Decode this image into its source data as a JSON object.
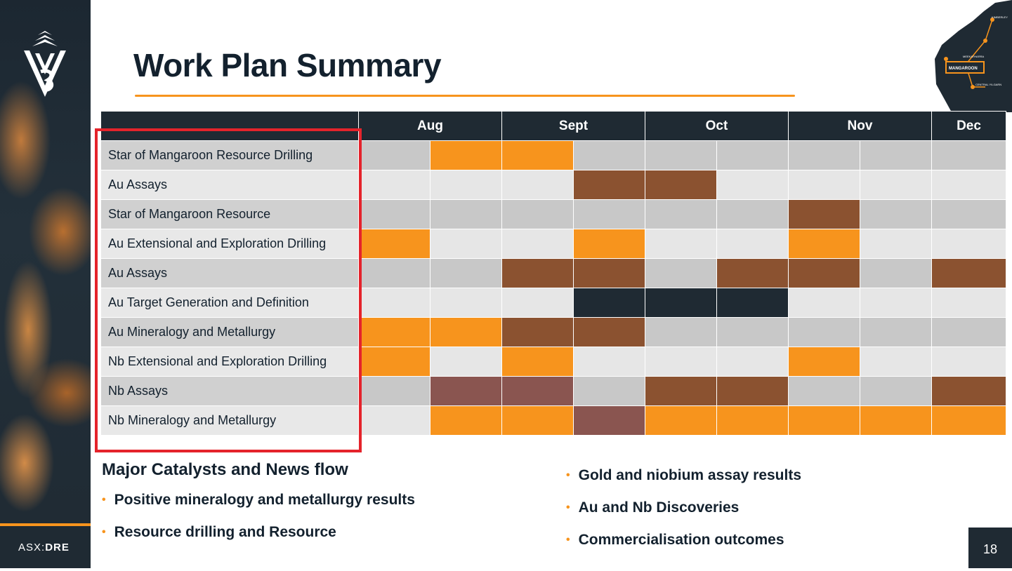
{
  "title": "Work Plan Summary",
  "months": [
    "Aug",
    "Sept",
    "Oct",
    "Nov",
    "Dec"
  ],
  "colors": {
    "orange": "#f7941d",
    "brown": "#8b5230",
    "navy": "#1f2a33",
    "mauve": "#8a5550",
    "grey": "#c8c8c8",
    "light_grey": "#e6e6e6"
  },
  "tasks": [
    {
      "label": "Star of Mangaroon Resource Drilling",
      "cells": [
        "",
        "orange",
        "orange",
        "",
        "",
        "",
        "",
        "",
        ""
      ]
    },
    {
      "label": "Au Assays",
      "cells": [
        "",
        "",
        "",
        "brown",
        "brown",
        "",
        "",
        "",
        ""
      ]
    },
    {
      "label": "Star of Mangaroon Resource",
      "cells": [
        "",
        "",
        "",
        "",
        "",
        "",
        "brown",
        "",
        ""
      ]
    },
    {
      "label": "Au Extensional and Exploration Drilling",
      "cells": [
        "orange",
        "",
        "",
        "orange",
        "",
        "",
        "orange",
        "",
        ""
      ]
    },
    {
      "label": "Au Assays",
      "cells": [
        "",
        "",
        "brown",
        "brown",
        "",
        "brown",
        "brown",
        "",
        "brown"
      ]
    },
    {
      "label": "Au Target Generation and Definition",
      "cells": [
        "",
        "",
        "",
        "navy",
        "navy",
        "navy",
        "",
        "",
        ""
      ]
    },
    {
      "label": "Au Mineralogy and Metallurgy",
      "cells": [
        "orange",
        "orange",
        "brown",
        "brown",
        "",
        "",
        "",
        "",
        ""
      ]
    },
    {
      "label": "Nb Extensional and Exploration Drilling",
      "cells": [
        "orange",
        "",
        "orange",
        "",
        "",
        "",
        "orange",
        "",
        ""
      ]
    },
    {
      "label": "Nb Assays",
      "cells": [
        "",
        "mauve",
        "mauve",
        "",
        "brown",
        "brown",
        "",
        "",
        "brown"
      ]
    },
    {
      "label": "Nb Mineralogy and Metallurgy",
      "cells": [
        "",
        "orange",
        "orange",
        "mauve",
        "orange",
        "orange",
        "orange",
        "orange",
        "orange"
      ]
    }
  ],
  "catalysts": {
    "heading": "Major Catalysts and News flow",
    "left": [
      "Positive mineralogy and metallurgy results",
      "Resource drilling and Resource"
    ],
    "right": [
      "Gold and niobium assay results",
      "Au and Nb Discoveries",
      "Commercialisation outcomes"
    ]
  },
  "footer": {
    "ticker_prefix": "ASX:",
    "ticker": "DRE",
    "page_number": "18"
  },
  "map": {
    "labels": [
      "KIMBERLEY",
      "MEEKATHARRA",
      "MANGAROON",
      "CENTRAL YILGARN"
    ]
  },
  "bullet_glyph": "•"
}
